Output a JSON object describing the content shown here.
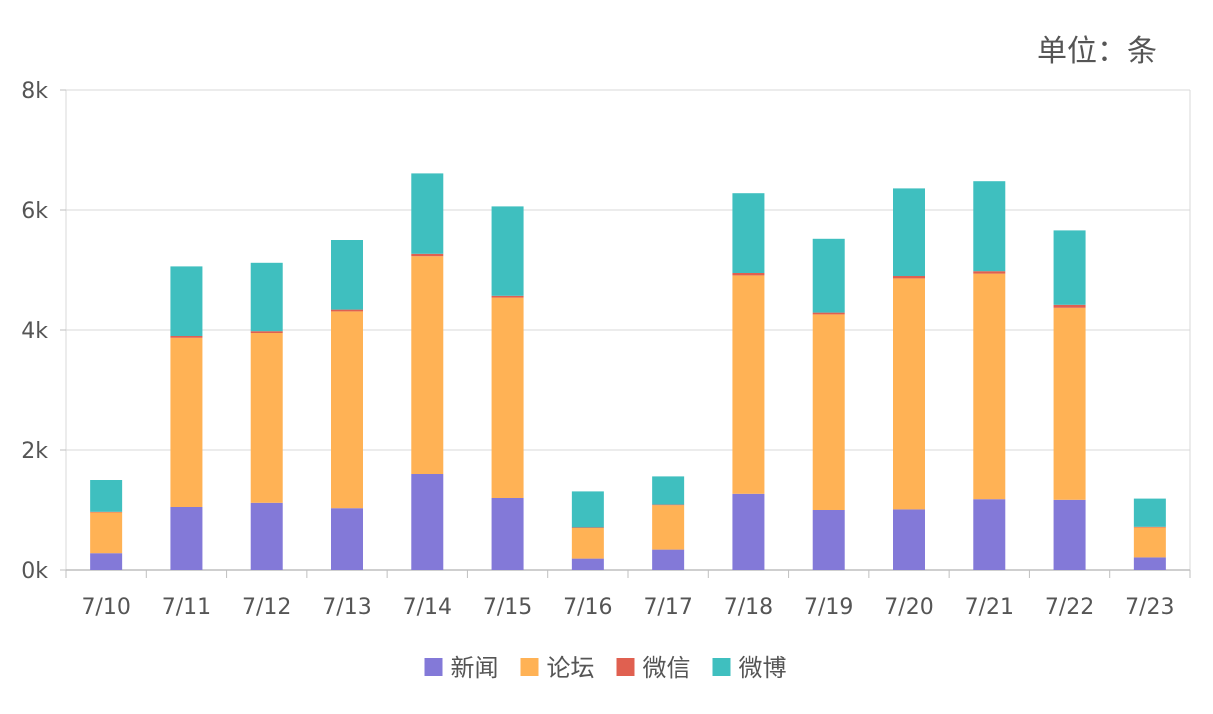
{
  "unit_label": "单位：条",
  "chart_data": {
    "type": "bar",
    "stacked": true,
    "categories": [
      "7/10",
      "7/11",
      "7/12",
      "7/13",
      "7/14",
      "7/15",
      "7/16",
      "7/17",
      "7/18",
      "7/19",
      "7/20",
      "7/21",
      "7/22",
      "7/23"
    ],
    "series": [
      {
        "name": "新闻",
        "color": "#8379d8",
        "values": [
          280,
          1050,
          1120,
          1030,
          1600,
          1200,
          190,
          340,
          1270,
          1000,
          1010,
          1180,
          1170,
          210
        ]
      },
      {
        "name": "论坛",
        "color": "#ffb255",
        "values": [
          680,
          2820,
          2830,
          3280,
          3630,
          3340,
          510,
          740,
          3640,
          3260,
          3850,
          3760,
          3200,
          500
        ]
      },
      {
        "name": "微信",
        "color": "#e06050",
        "values": [
          10,
          30,
          30,
          30,
          40,
          30,
          10,
          10,
          40,
          30,
          40,
          40,
          50,
          10
        ]
      },
      {
        "name": "微博",
        "color": "#3fbfbf",
        "values": [
          530,
          1160,
          1140,
          1160,
          1340,
          1490,
          600,
          470,
          1330,
          1230,
          1460,
          1500,
          1240,
          470
        ]
      }
    ],
    "y_ticks": [
      "0k",
      "2k",
      "4k",
      "6k",
      "8k"
    ],
    "ylim": [
      0,
      8000
    ],
    "grid": true,
    "legend_position": "bottom-center"
  }
}
